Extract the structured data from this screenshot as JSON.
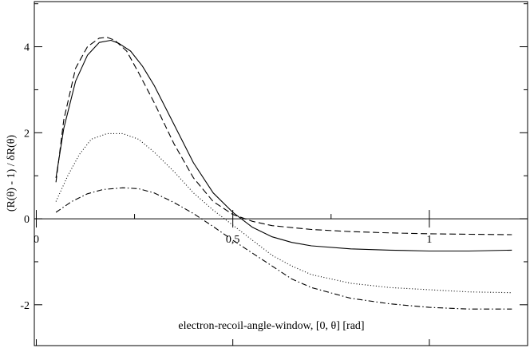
{
  "chart_data": {
    "type": "line",
    "title": "",
    "xlabel": "electron-recoil-angle-window, [0, θ] [rad]",
    "ylabel": "(R(θ) - 1) / δR(θ)",
    "xlim": [
      -0.005,
      1.25
    ],
    "ylim": [
      -2.95,
      5.05
    ],
    "x_ticks": [
      {
        "value": 0,
        "label": "0"
      },
      {
        "value": 0.5,
        "label": "0,5"
      },
      {
        "value": 1,
        "label": "1"
      }
    ],
    "x_minor_ticks": [
      0.25,
      0.75
    ],
    "y_ticks": [
      {
        "value": -2,
        "label": "-2"
      },
      {
        "value": 0,
        "label": "0"
      },
      {
        "value": 2,
        "label": "2"
      },
      {
        "value": 4,
        "label": "4"
      }
    ],
    "zero_line": true,
    "grid": false,
    "legend": "none",
    "series": [
      {
        "style": "solid",
        "x": [
          0.05,
          0.07,
          0.1,
          0.13,
          0.16,
          0.19,
          0.21,
          0.24,
          0.27,
          0.3,
          0.35,
          0.4,
          0.45,
          0.5,
          0.55,
          0.6,
          0.65,
          0.7,
          0.8,
          0.9,
          1.0,
          1.1,
          1.21
        ],
        "y": [
          0.95,
          2.1,
          3.2,
          3.8,
          4.1,
          4.15,
          4.08,
          3.9,
          3.55,
          3.1,
          2.2,
          1.3,
          0.6,
          0.15,
          -0.2,
          -0.42,
          -0.55,
          -0.63,
          -0.7,
          -0.73,
          -0.75,
          -0.75,
          -0.73
        ]
      },
      {
        "style": "dashed",
        "x": [
          0.05,
          0.07,
          0.1,
          0.13,
          0.16,
          0.18,
          0.2,
          0.23,
          0.26,
          0.3,
          0.35,
          0.4,
          0.45,
          0.5,
          0.55,
          0.6,
          0.7,
          0.8,
          0.9,
          1.0,
          1.1,
          1.21
        ],
        "y": [
          0.85,
          2.3,
          3.5,
          4.0,
          4.2,
          4.22,
          4.15,
          3.9,
          3.4,
          2.7,
          1.75,
          0.95,
          0.4,
          0.1,
          -0.06,
          -0.16,
          -0.25,
          -0.3,
          -0.33,
          -0.35,
          -0.36,
          -0.37
        ]
      },
      {
        "style": "dotted",
        "x": [
          0.05,
          0.08,
          0.11,
          0.14,
          0.18,
          0.22,
          0.26,
          0.3,
          0.35,
          0.4,
          0.45,
          0.5,
          0.55,
          0.6,
          0.65,
          0.7,
          0.8,
          0.9,
          1.0,
          1.1,
          1.21
        ],
        "y": [
          0.4,
          1.0,
          1.5,
          1.85,
          1.98,
          1.98,
          1.85,
          1.55,
          1.1,
          0.6,
          0.2,
          -0.15,
          -0.5,
          -0.85,
          -1.1,
          -1.3,
          -1.5,
          -1.6,
          -1.65,
          -1.7,
          -1.72
        ]
      },
      {
        "style": "dashdot",
        "x": [
          0.05,
          0.09,
          0.13,
          0.17,
          0.22,
          0.26,
          0.3,
          0.35,
          0.4,
          0.45,
          0.5,
          0.55,
          0.6,
          0.65,
          0.7,
          0.8,
          0.9,
          1.0,
          1.1,
          1.21
        ],
        "y": [
          0.15,
          0.4,
          0.58,
          0.68,
          0.72,
          0.7,
          0.6,
          0.38,
          0.12,
          -0.18,
          -0.5,
          -0.8,
          -1.1,
          -1.4,
          -1.6,
          -1.85,
          -1.98,
          -2.06,
          -2.1,
          -2.1
        ]
      }
    ]
  }
}
